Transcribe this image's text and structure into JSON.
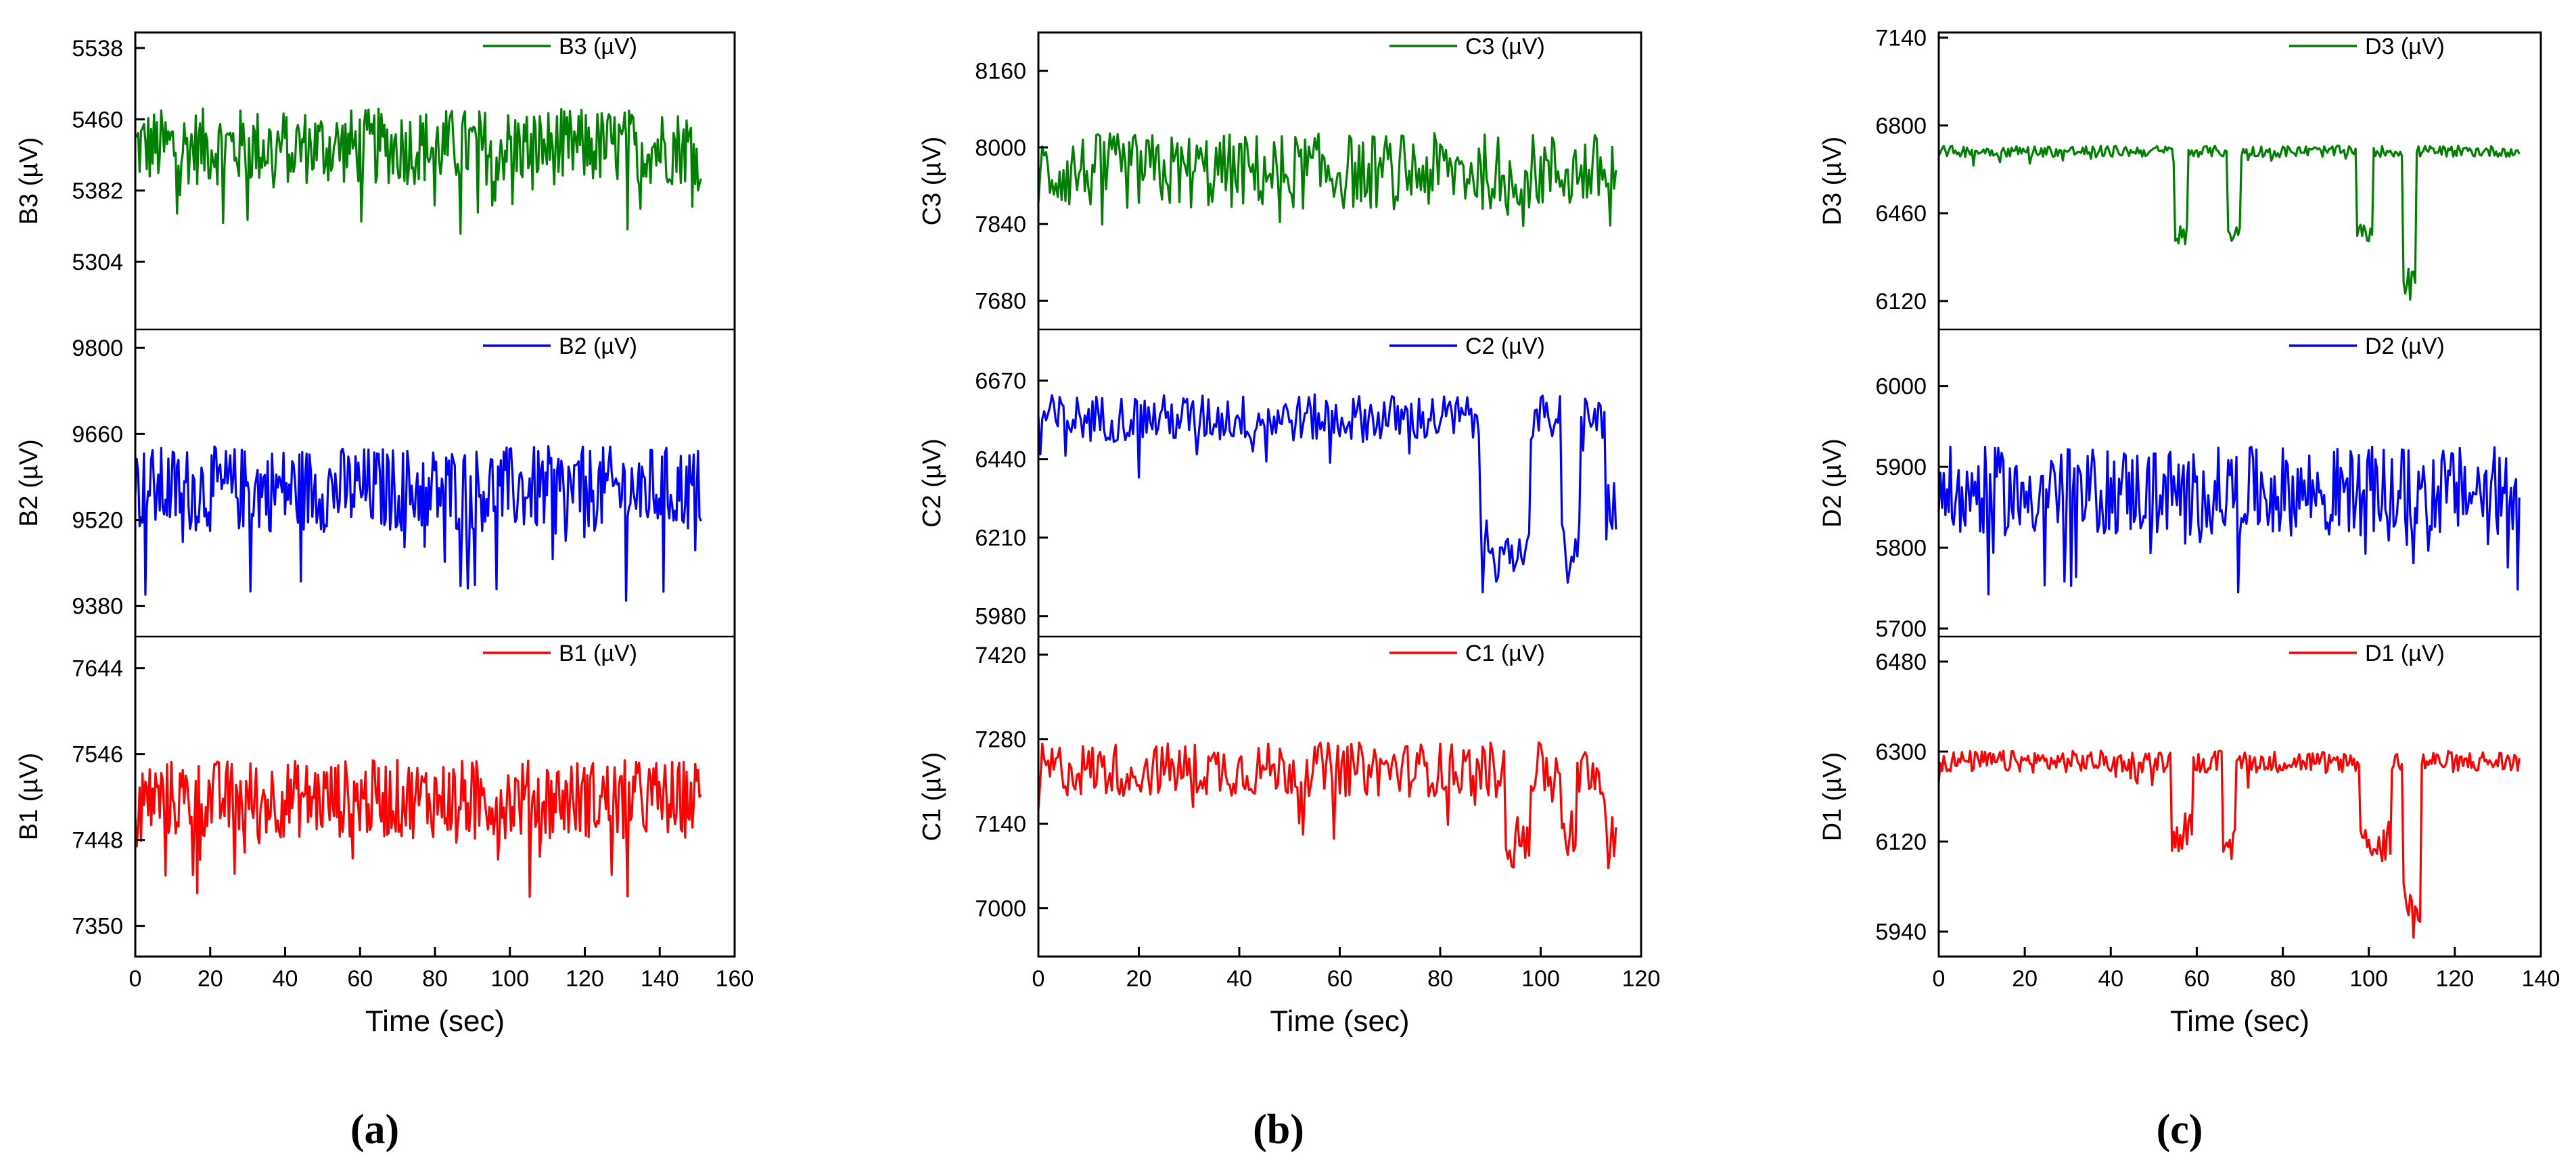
{
  "figure": {
    "panels": [
      {
        "tag": "(a)",
        "xlabel": "Time (sec)",
        "xlim": [
          0,
          160
        ],
        "xticks": [
          "0",
          "20",
          "40",
          "60",
          "80",
          "100",
          "120",
          "140",
          "160"
        ],
        "duration": 151,
        "subplots": [
          {
            "name": "B3 (µV)",
            "ylabel": "B3 (µV)",
            "color": "#008000",
            "ylim": [
              5230,
              5555
            ],
            "yticks": [
              "5304",
              "5382",
              "5460",
              "5538"
            ],
            "level": 5430,
            "noise": 42,
            "dips": []
          },
          {
            "name": "B2 (µV)",
            "ylabel": "B2 (µV)",
            "color": "#0000ff",
            "ylim": [
              9330,
              9830
            ],
            "yticks": [
              "9380",
              "9520",
              "9660",
              "9800"
            ],
            "level": 9570,
            "noise": 70,
            "dips": []
          },
          {
            "name": "B1 (µV)",
            "ylabel": "B1 (µV)",
            "color": "#ff0000",
            "ylim": [
              7315,
              7680
            ],
            "yticks": [
              "7350",
              "7448",
              "7546",
              "7644"
            ],
            "level": 7495,
            "noise": 45,
            "dips": []
          }
        ]
      },
      {
        "tag": "(b)",
        "xlabel": "Time (sec)",
        "xlim": [
          0,
          120
        ],
        "xticks": [
          "0",
          "20",
          "40",
          "60",
          "80",
          "100",
          "120"
        ],
        "duration": 115,
        "subplots": [
          {
            "name": "C3 (µV)",
            "ylabel": "C3 (µV)",
            "color": "#008000",
            "ylim": [
              7620,
              8240
            ],
            "yticks": [
              "7680",
              "7840",
              "8000",
              "8160"
            ],
            "level": 7950,
            "noise": 80,
            "dips": []
          },
          {
            "name": "C2 (µV)",
            "ylabel": "C2 (µV)",
            "color": "#0000ff",
            "ylim": [
              5920,
              6820
            ],
            "yticks": [
              "5980",
              "6210",
              "6440",
              "6670"
            ],
            "level": 6560,
            "noise": 70,
            "dips": [
              [
                88,
                98,
                450
              ],
              [
                104,
                108,
                450
              ],
              [
                113,
                115,
                300
              ]
            ]
          },
          {
            "name": "C1 (µV)",
            "ylabel": "C1 (µV)",
            "color": "#ff0000",
            "ylim": [
              6920,
              7450
            ],
            "yticks": [
              "7000",
              "7140",
              "7280",
              "7420"
            ],
            "level": 7230,
            "noise": 45,
            "dips": [
              [
                93,
                98,
                130
              ],
              [
                104,
                107,
                120
              ],
              [
                113,
                115,
                130
              ]
            ]
          }
        ]
      },
      {
        "tag": "(c)",
        "xlabel": "Time (sec)",
        "xlim": [
          0,
          140
        ],
        "xticks": [
          "0",
          "20",
          "40",
          "60",
          "80",
          "100",
          "120",
          "140"
        ],
        "duration": 135,
        "subplots": [
          {
            "name": "D3 (µV)",
            "ylabel": "D3 (µV)",
            "color": "#008000",
            "ylim": [
              6010,
              7160
            ],
            "yticks": [
              "6120",
              "6460",
              "6800",
              "7140"
            ],
            "level": 6700,
            "noise": 22,
            "dips": [
              [
                55,
                58,
                360
              ],
              [
                67,
                70,
                340
              ],
              [
                97,
                101,
                340
              ],
              [
                108,
                111,
                570
              ]
            ]
          },
          {
            "name": "D2 (µV)",
            "ylabel": "D2 (µV)",
            "color": "#0000ff",
            "ylim": [
              5690,
              6070
            ],
            "yticks": [
              "5700",
              "5800",
              "5900",
              "6000"
            ],
            "level": 5870,
            "noise": 55,
            "dips": []
          },
          {
            "name": "D1 (µV)",
            "ylabel": "D1 (µV)",
            "color": "#ff0000",
            "ylim": [
              5890,
              6530
            ],
            "yticks": [
              "5940",
              "6120",
              "6300",
              "6480"
            ],
            "level": 6280,
            "noise": 22,
            "dips": [
              [
                54,
                59,
                160
              ],
              [
                66,
                69,
                200
              ],
              [
                98,
                105,
                180
              ],
              [
                108,
                112,
                330
              ]
            ]
          }
        ]
      }
    ]
  },
  "chart_data": [
    {
      "type": "line",
      "title": "(a)",
      "xlabel": "Time (sec)",
      "xlim": [
        0,
        160
      ],
      "series": [
        {
          "name": "B3 (µV)",
          "ylim": [
            5230,
            5555
          ]
        },
        {
          "name": "B2 (µV)",
          "ylim": [
            9330,
            9830
          ]
        },
        {
          "name": "B1 (µV)",
          "ylim": [
            7315,
            7680
          ]
        }
      ]
    },
    {
      "type": "line",
      "title": "(b)",
      "xlabel": "Time (sec)",
      "xlim": [
        0,
        120
      ],
      "series": [
        {
          "name": "C3 (µV)",
          "ylim": [
            7620,
            8240
          ]
        },
        {
          "name": "C2 (µV)",
          "ylim": [
            5920,
            6820
          ]
        },
        {
          "name": "C1 (µV)",
          "ylim": [
            6920,
            7450
          ]
        }
      ]
    },
    {
      "type": "line",
      "title": "(c)",
      "xlabel": "Time (sec)",
      "xlim": [
        0,
        140
      ],
      "series": [
        {
          "name": "D3 (µV)",
          "ylim": [
            6010,
            7160
          ]
        },
        {
          "name": "D2 (µV)",
          "ylim": [
            5690,
            6070
          ]
        },
        {
          "name": "D1 (µV)",
          "ylim": [
            5890,
            6530
          ]
        }
      ]
    }
  ]
}
